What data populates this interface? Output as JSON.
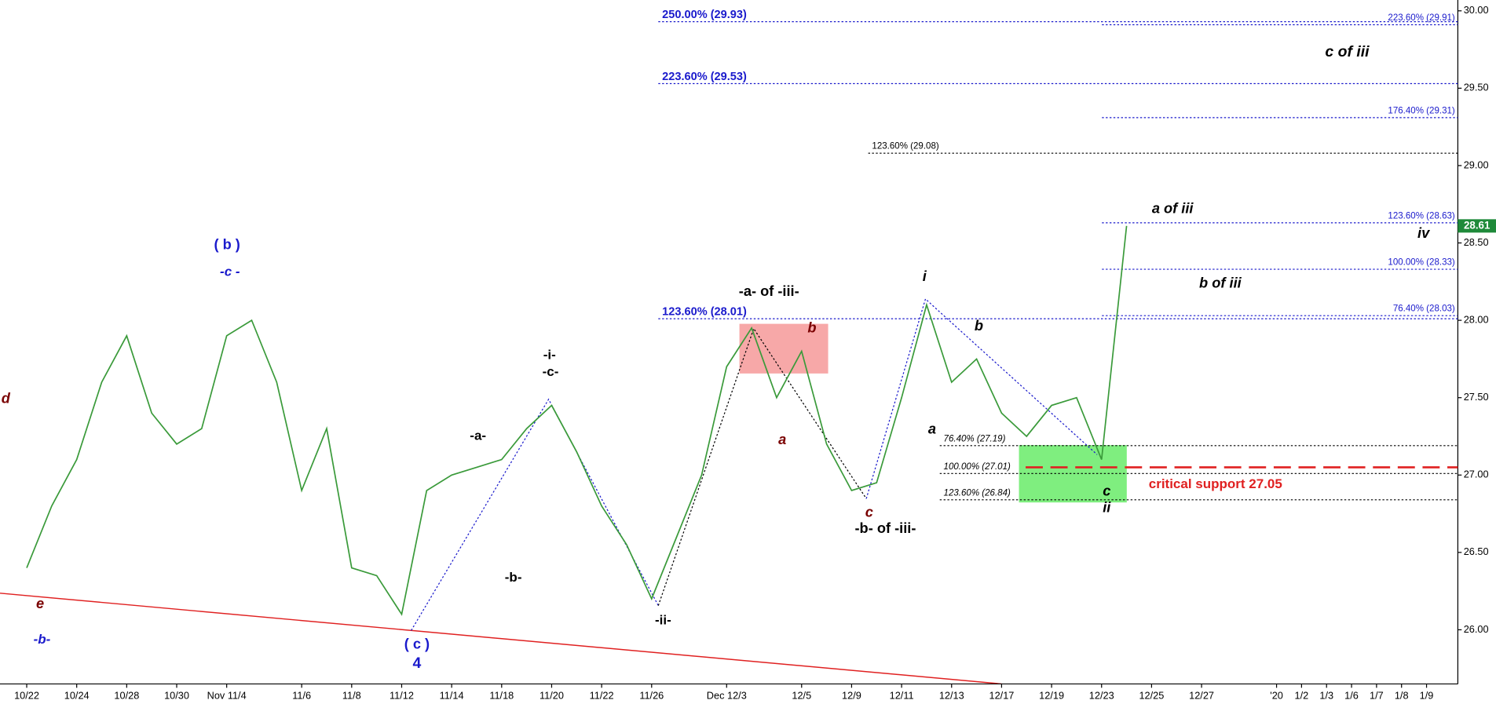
{
  "chart_data": {
    "type": "line",
    "categories": [
      "10/22",
      null,
      "10/24",
      null,
      "10/28",
      null,
      "10/30",
      null,
      "Nov 11/4",
      null,
      null,
      "11/6",
      null,
      "11/8",
      null,
      "11/12",
      null,
      "11/14",
      null,
      "11/18",
      null,
      "11/20",
      null,
      "11/22",
      null,
      "11/26",
      null,
      null,
      "Dec 12/3",
      null,
      null,
      "12/5",
      null,
      "12/9",
      null,
      "12/11",
      null,
      "12/13",
      null,
      "12/17",
      null,
      "12/19",
      null,
      "12/23",
      null,
      "12/25",
      null,
      "12/27",
      null,
      null,
      "'20",
      "1/2",
      "1/3",
      "1/6",
      "1/7",
      "1/8",
      "1/9"
    ],
    "series": [
      {
        "color": "#3a9a3a",
        "values": [
          26.4,
          26.8,
          27.1,
          27.6,
          27.9,
          27.4,
          27.2,
          27.3,
          27.9,
          28.0,
          27.6,
          26.9,
          27.3,
          26.4,
          26.35,
          26.1,
          26.9,
          27.0,
          27.05,
          27.1,
          27.3,
          27.45,
          27.15,
          26.8,
          26.55,
          26.2,
          26.6,
          27.0,
          27.7,
          27.95,
          27.5,
          27.8,
          27.2,
          26.9,
          26.95,
          27.5,
          28.1,
          27.6,
          27.75,
          27.4,
          27.25,
          27.45,
          27.5,
          27.1,
          28.61,
          null,
          null,
          null,
          null,
          null,
          null,
          null,
          null,
          null,
          null,
          null,
          null
        ]
      }
    ],
    "ylim": [
      25.65,
      30.07
    ],
    "yticks": [
      {
        "value": 26,
        "label": "26.00"
      },
      {
        "value": 26.5,
        "label": "26.50"
      },
      {
        "value": 27,
        "label": "27.00"
      },
      {
        "value": 27.5,
        "label": "27.50"
      },
      {
        "value": 28,
        "label": "28.00"
      },
      {
        "value": 28.5,
        "label": "28.50"
      },
      {
        "value": 29,
        "label": "29.00"
      },
      {
        "value": 29.5,
        "label": "29.50"
      },
      {
        "value": 30,
        "label": "30.00"
      }
    ],
    "last_price": 28.61,
    "levels": [
      {
        "label": "250.00% (29.93)",
        "value": 29.93,
        "color": "#1a1acc"
      },
      {
        "label": "223.60% (29.53)",
        "value": 29.53,
        "color": "#1a1acc"
      },
      {
        "label": "123.60% (28.01)",
        "value": 28.01,
        "color": "#1a1acc"
      },
      {
        "label": "223.60% (29.91)",
        "value": 29.91,
        "color": "#1a1acc"
      },
      {
        "label": "176.40% (29.31)",
        "value": 29.31,
        "color": "#1a1acc"
      },
      {
        "label": "123.60% (28.63)",
        "value": 28.63,
        "color": "#1a1acc"
      },
      {
        "label": "100.00% (28.33)",
        "value": 28.33,
        "color": "#1a1acc"
      },
      {
        "label": "76.40% (28.03)",
        "value": 28.03,
        "color": "#1a1acc"
      },
      {
        "label": "123.60% (29.08)",
        "value": 29.08,
        "color": "#000000"
      },
      {
        "label": "76.40% (27.19)",
        "value": 27.19,
        "color": "#000000"
      },
      {
        "label": "100.00% (27.01)",
        "value": 27.01,
        "color": "#000000"
      },
      {
        "label": "123.60% (26.84)",
        "value": 26.84,
        "color": "#000000"
      }
    ],
    "support": {
      "label": "critical support 27.05",
      "value": 27.05,
      "color": "#e02020"
    },
    "annotations": [
      {
        "text": "d",
        "color": "#7a0000"
      },
      {
        "text": "e",
        "color": "#7a0000"
      },
      {
        "text": "-b-",
        "color": "#1a1acc"
      },
      {
        "text": "( b )",
        "color": "#1a1acc"
      },
      {
        "text": "-c -",
        "color": "#1a1acc"
      },
      {
        "text": "( c )",
        "color": "#1a1acc"
      },
      {
        "text": "4",
        "color": "#1a1acc"
      },
      {
        "text": "-a-",
        "color": "#000000"
      },
      {
        "text": "-b-",
        "color": "#000000"
      },
      {
        "text": "-i-",
        "color": "#000000"
      },
      {
        "text": "-c-",
        "color": "#000000"
      },
      {
        "text": "-ii-",
        "color": "#000000"
      },
      {
        "text": "-a- of -iii-",
        "color": "#000000"
      },
      {
        "text": "a",
        "color": "#7a0000"
      },
      {
        "text": "b",
        "color": "#7a0000"
      },
      {
        "text": "c",
        "color": "#7a0000"
      },
      {
        "text": "-b- of -iii-",
        "color": "#000000"
      },
      {
        "text": "i",
        "color": "#000000"
      },
      {
        "text": "b",
        "color": "#000000"
      },
      {
        "text": "a",
        "color": "#000000"
      },
      {
        "text": "c",
        "color": "#000000"
      },
      {
        "text": "ii",
        "color": "#000000"
      },
      {
        "text": "a of iii",
        "color": "#000000"
      },
      {
        "text": "iv",
        "color": "#000000"
      },
      {
        "text": "b of iii",
        "color": "#000000"
      },
      {
        "text": "c of iii",
        "color": "#000000"
      }
    ]
  }
}
